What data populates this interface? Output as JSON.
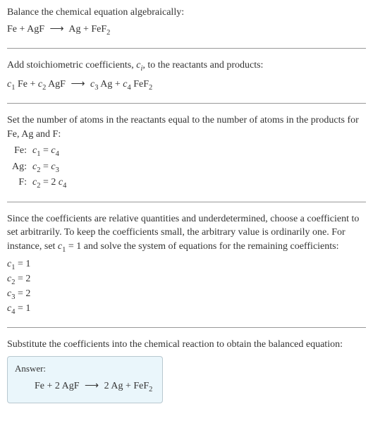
{
  "colors": {
    "text": "#333333",
    "rule": "#999999",
    "answer_bg": "#eaf6fb",
    "answer_border": "#b8c8d0"
  },
  "typography": {
    "body_fontsize": 14,
    "body_family": "Georgia, Times New Roman, serif",
    "answer_label_fontsize": 13
  },
  "section1": {
    "line1": "Balance the chemical equation algebraically:",
    "eq_lhs1": "Fe",
    "eq_plus": " + ",
    "eq_lhs2": "AgF",
    "arrow": "⟶",
    "eq_rhs1": "Ag",
    "eq_rhs2_base": "FeF",
    "eq_rhs2_sub": "2"
  },
  "section2": {
    "line1_a": "Add stoichiometric coefficients, ",
    "line1_ci_c": "c",
    "line1_ci_i": "i",
    "line1_b": ", to the reactants and products:",
    "c1": "c",
    "s1": "1",
    "sp1": " Fe",
    "c2": "c",
    "s2": "2",
    "sp2": " AgF",
    "c3": "c",
    "s3": "3",
    "sp3": " Ag",
    "c4": "c",
    "s4": "4",
    "sp4_base": " FeF",
    "sp4_sub": "2",
    "arrow": "⟶",
    "plus": " + "
  },
  "section3": {
    "line1": "Set the number of atoms in the reactants equal to the number of atoms in the products for Fe, Ag and F:",
    "rows": [
      {
        "label": "Fe:",
        "lhs_c": "c",
        "lhs_s": "1",
        "eq": " = ",
        "rhs_c": "c",
        "rhs_s": "4",
        "rhs_pre": ""
      },
      {
        "label": "Ag:",
        "lhs_c": "c",
        "lhs_s": "2",
        "eq": " = ",
        "rhs_c": "c",
        "rhs_s": "3",
        "rhs_pre": ""
      },
      {
        "label": "F:",
        "lhs_c": "c",
        "lhs_s": "2",
        "eq": " = ",
        "rhs_c": "c",
        "rhs_s": "4",
        "rhs_pre": "2 "
      }
    ]
  },
  "section4": {
    "para_a": "Since the coefficients are relative quantities and underdetermined, choose a coefficient to set arbitrarily. To keep the coefficients small, the arbitrary value is ordinarily one. For instance, set ",
    "para_c": "c",
    "para_s": "1",
    "para_b": " = 1 and solve the system of equations for the remaining coefficients:",
    "coefs": [
      {
        "c": "c",
        "s": "1",
        "val": " = 1"
      },
      {
        "c": "c",
        "s": "2",
        "val": " = 2"
      },
      {
        "c": "c",
        "s": "3",
        "val": " = 2"
      },
      {
        "c": "c",
        "s": "4",
        "val": " = 1"
      }
    ]
  },
  "section5": {
    "line1": "Substitute the coefficients into the chemical reaction to obtain the balanced equation:",
    "answer_label": "Answer:",
    "eq_lhs1": "Fe",
    "plus": " + ",
    "eq_lhs2": "2 AgF",
    "arrow": "⟶",
    "eq_rhs1": "2 Ag",
    "eq_rhs2_base": "FeF",
    "eq_rhs2_sub": "2"
  }
}
